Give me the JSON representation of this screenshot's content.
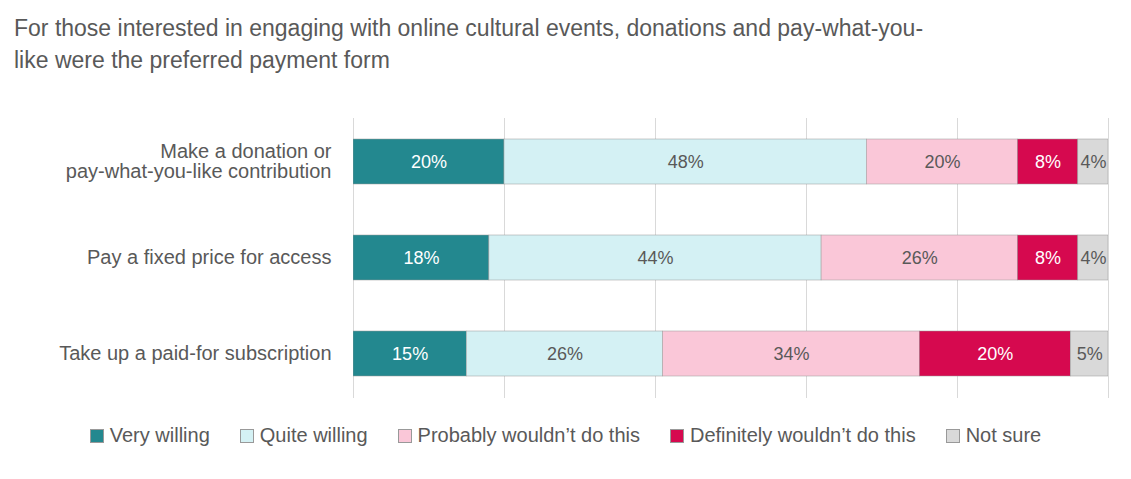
{
  "chart_data": {
    "type": "bar",
    "orientation": "horizontal",
    "stacked": true,
    "title": "For those interested in engaging with online cultural events, donations and pay-what-you-like were the preferred payment form",
    "categories": [
      "Make a donation or pay-what-you-like contribution",
      "Pay a fixed price for access",
      "Take up a paid-for subscription"
    ],
    "series": [
      {
        "name": "Very willing",
        "color": "#23888f",
        "values": [
          20,
          18,
          15
        ],
        "value_labels": [
          "20%",
          "18%",
          "15%"
        ]
      },
      {
        "name": "Quite willing",
        "color": "#d4f1f4",
        "values": [
          48,
          44,
          26
        ],
        "value_labels": [
          "48%",
          "44%",
          "26%"
        ]
      },
      {
        "name": "Probably wouldn’t do this",
        "color": "#fac7d8",
        "values": [
          20,
          26,
          34
        ],
        "value_labels": [
          "20%",
          "26%",
          "34%"
        ]
      },
      {
        "name": "Definitely wouldn’t do this",
        "color": "#d6094f",
        "values": [
          8,
          8,
          20
        ],
        "value_labels": [
          "8%",
          "8%",
          "20%"
        ]
      },
      {
        "name": "Not sure",
        "color": "#d9d9d9",
        "values": [
          4,
          4,
          5
        ],
        "value_labels": [
          "4%",
          "4%",
          "5%"
        ]
      }
    ],
    "xlim": [
      0,
      100
    ],
    "xticks": [
      0,
      20,
      40,
      60,
      80,
      100
    ],
    "grid": true,
    "data_labels": true,
    "tick_labels": "y",
    "legend": "bottom"
  }
}
